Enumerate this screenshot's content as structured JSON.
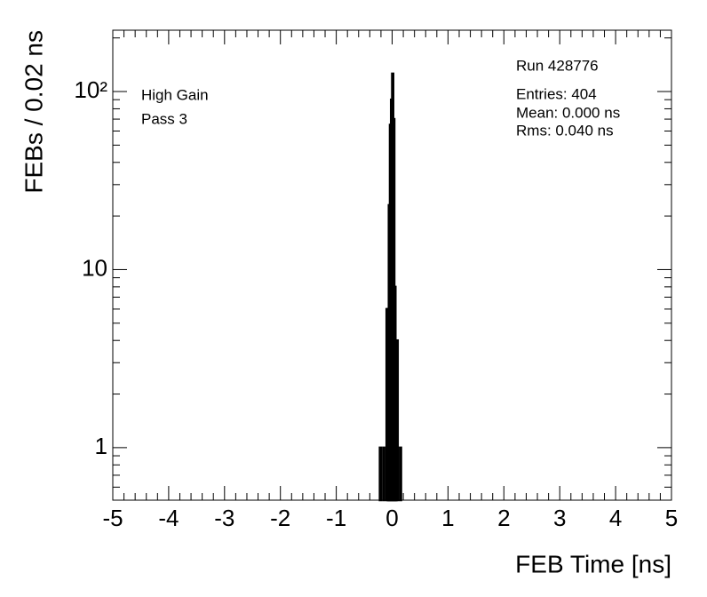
{
  "chart_data": {
    "type": "histogram",
    "x_label": "FEB Time [ns]",
    "y_label": "FEBs / 0.02 ns",
    "annotations": [
      "High Gain",
      "Pass 3"
    ],
    "stats": [
      "Run 428776",
      "Entries: 404",
      "Mean: 0.000 ns",
      "Rms: 0.040 ns"
    ],
    "bins": [
      -0.22,
      -0.2,
      -0.18,
      -0.16,
      -0.14,
      -0.12,
      -0.1,
      -0.08,
      -0.06,
      -0.04,
      -0.02,
      0,
      0.02,
      0.04,
      0.06,
      0.08,
      0.1,
      0.12,
      0.14,
      0.16,
      0.18
    ],
    "values": [
      1,
      0,
      0,
      1,
      0,
      0,
      6,
      6,
      23,
      65,
      90,
      126,
      70,
      8,
      3,
      4,
      0,
      0,
      1,
      0
    ],
    "color": "#000000",
    "xlim": [
      -5,
      5
    ],
    "xticks": [
      -5,
      -4,
      -3,
      -2,
      -1,
      0,
      1,
      2,
      3,
      4,
      5
    ],
    "ylim": [
      0.507,
      221
    ],
    "yticks": [
      1,
      10,
      {
        "value": 100,
        "label": "10²"
      }
    ],
    "log_y": true,
    "grid": false
  }
}
